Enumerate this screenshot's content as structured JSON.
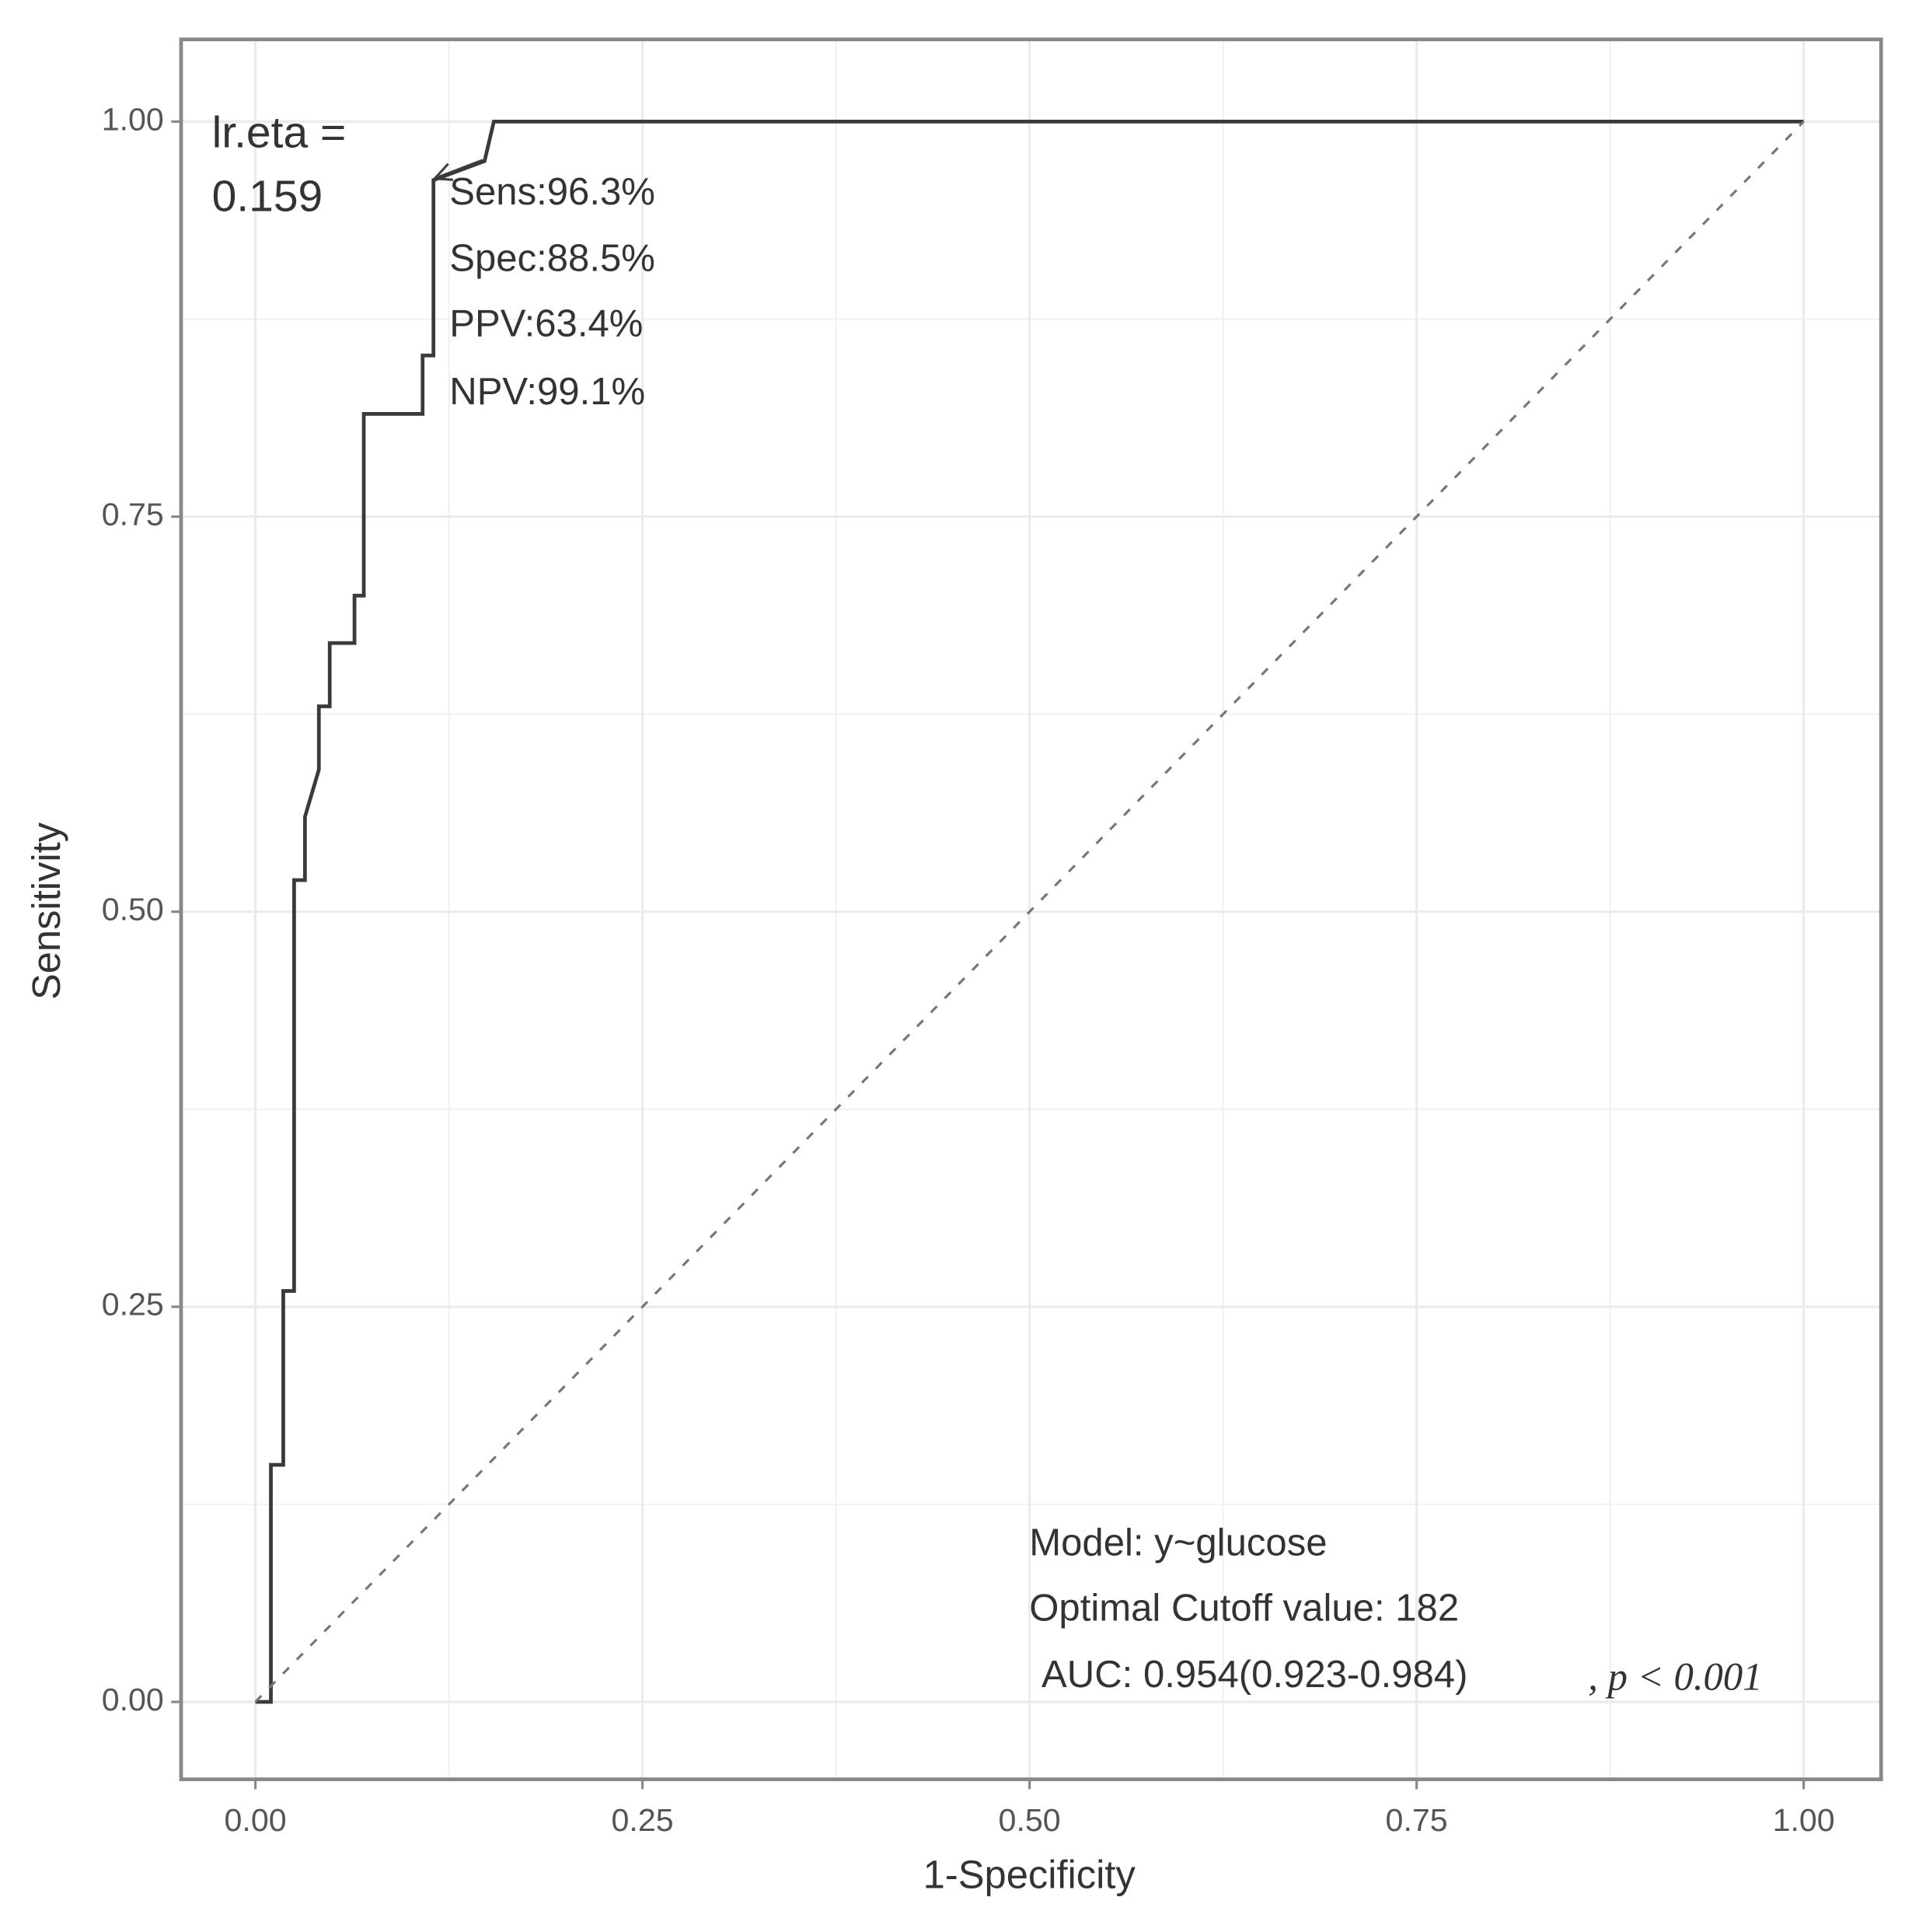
{
  "chart_data": {
    "type": "line",
    "x_label": "1-Specificity",
    "y_label": "Sensitivity",
    "xlim": [
      -0.048,
      1.05
    ],
    "ylim": [
      -0.049,
      1.052
    ],
    "xticks": [
      {
        "value": 0,
        "label": "0.00"
      },
      {
        "value": 0.25,
        "label": "0.25"
      },
      {
        "value": 0.5,
        "label": "0.50"
      },
      {
        "value": 0.75,
        "label": "0.75"
      },
      {
        "value": 1,
        "label": "1.00"
      }
    ],
    "yticks": [
      {
        "value": 0,
        "label": "0.00"
      },
      {
        "value": 0.25,
        "label": "0.25"
      },
      {
        "value": 0.5,
        "label": "0.50"
      },
      {
        "value": 0.75,
        "label": "0.75"
      },
      {
        "value": 1,
        "label": "1.00"
      }
    ],
    "x_minor": [
      0.125,
      0.375,
      0.625,
      0.875
    ],
    "y_minor": [
      0.125,
      0.375,
      0.625,
      0.875
    ],
    "grid": true,
    "series": [
      {
        "color": "#3a3a3a",
        "x": [
          0,
          0.01,
          0.01,
          0.018,
          0.018,
          0.025,
          0.025,
          0.032,
          0.032,
          0.041,
          0.041,
          0.048,
          0.048,
          0.064,
          0.064,
          0.07,
          0.07,
          0.108,
          0.108,
          0.115,
          0.115,
          0.148,
          0.154,
          1
        ],
        "values": [
          0,
          0,
          0.15,
          0.15,
          0.26,
          0.26,
          0.52,
          0.52,
          0.56,
          0.59,
          0.63,
          0.63,
          0.67,
          0.67,
          0.7,
          0.7,
          0.815,
          0.815,
          0.852,
          0.852,
          0.963,
          0.975,
          1,
          1
        ]
      },
      {
        "color": "#777777",
        "dashed": true,
        "x": [
          0,
          1
        ],
        "values": [
          0,
          1
        ]
      }
    ],
    "annotations": [
      "lr.eta =",
      "0.159",
      "Sens:96.3%",
      "Spec:88.5%",
      "PPV:63.4%",
      "NPV:99.1%",
      "Model: y~glucose",
      "Optimal Cutoff value:  182",
      "AUC:  0.954(0.923-0.984)",
      ", p < 0.001"
    ]
  }
}
